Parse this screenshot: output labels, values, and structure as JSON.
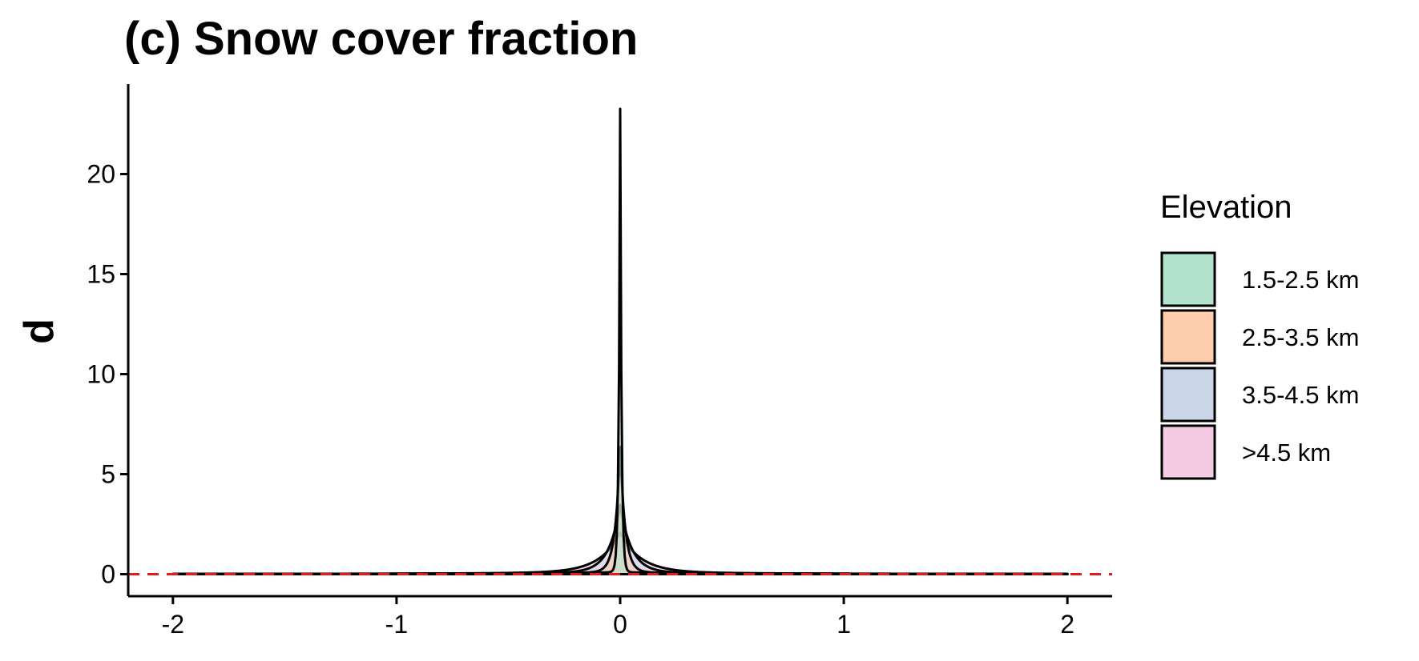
{
  "chart_data": {
    "type": "area",
    "subtype": "density",
    "title": "(c) Snow cover fraction",
    "xlabel": "",
    "ylabel": "d",
    "xlim": [
      -2.2,
      2.2
    ],
    "ylim": [
      -1.1,
      24.5
    ],
    "x_ticks": [
      -2,
      -1,
      0,
      1,
      2
    ],
    "x_tick_labels": [
      "-2",
      "-1",
      "0",
      "1",
      "2"
    ],
    "y_ticks": [
      0,
      5,
      10,
      15,
      20
    ],
    "y_tick_labels": [
      "0",
      "5",
      "10",
      "15",
      "20"
    ],
    "grid": false,
    "reference_line": {
      "y": 0,
      "style": "dashed",
      "color": "#e41a1c"
    },
    "legend": {
      "title": "Elevation",
      "position": "right"
    },
    "series": [
      {
        "name": "1.5-2.5 km",
        "color": "#1b9e77",
        "fill": "#b3e2cd",
        "peak": 23.2,
        "width": 0.006,
        "tail": 0.12
      },
      {
        "name": "2.5-3.5 km",
        "color": "#d95f02",
        "fill": "#fdcdac",
        "peak": 6.3,
        "width": 0.022,
        "tail": 0.2
      },
      {
        "name": "3.5-4.5 km",
        "color": "#7570b3",
        "fill": "#cbd5e8",
        "peak": 3.4,
        "width": 0.05,
        "tail": 0.3
      },
      {
        "name": ">4.5 km",
        "color": "#e7298a",
        "fill": "#f4cae4",
        "peak": 2.0,
        "width": 0.09,
        "tail": 0.5
      }
    ]
  }
}
